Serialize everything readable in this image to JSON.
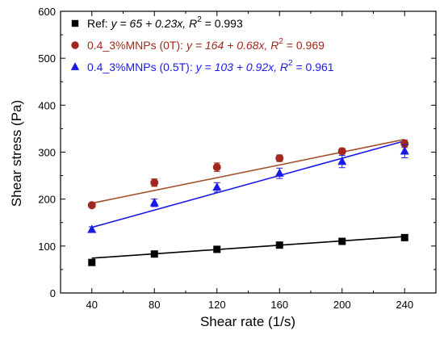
{
  "chart_data": {
    "type": "scatter",
    "xlabel": "Shear rate (1/s)",
    "ylabel": "Shear stress (Pa)",
    "xlim": [
      20,
      260
    ],
    "ylim": [
      0,
      600
    ],
    "xticks": [
      40,
      80,
      120,
      160,
      200,
      240
    ],
    "yticks": [
      0,
      100,
      200,
      300,
      400,
      500,
      600
    ],
    "x": [
      40,
      80,
      120,
      160,
      200,
      240
    ],
    "grid": false,
    "legend_position": "top-left",
    "series": [
      {
        "name": "Ref",
        "marker": "square",
        "color": "#000000",
        "line_color": "#000000",
        "values": [
          65,
          83,
          93,
          102,
          110,
          118
        ],
        "errors": [
          4,
          3,
          4,
          3,
          4,
          5
        ],
        "fit": {
          "intercept": 65,
          "slope": 0.23
        },
        "legend_label": "Ref: ",
        "legend_eq": "y = 65 + 0.23x, R",
        "legend_sup": "2",
        "legend_tail": " = 0.993"
      },
      {
        "name": "0.4_3%MNPs (0T)",
        "marker": "circle",
        "color": "#a0281e",
        "line_color": "#a0522d",
        "values": [
          187,
          235,
          268,
          287,
          302,
          318
        ],
        "errors": [
          5,
          8,
          9,
          7,
          6,
          8
        ],
        "fit": {
          "intercept": 164,
          "slope": 0.68
        },
        "legend_label": "0.4_3%MNPs (0T): ",
        "legend_eq": "y = 164 + 0.68x, R",
        "legend_sup": "2",
        "legend_tail": " = 0.969"
      },
      {
        "name": "0.4_3%MNPs (0.5T)",
        "marker": "triangle",
        "color": "#1a1ae6",
        "line_color": "#1a1ae6",
        "values": [
          135,
          192,
          225,
          255,
          280,
          302
        ],
        "errors": [
          6,
          8,
          10,
          11,
          13,
          14
        ],
        "fit": {
          "intercept": 103,
          "slope": 0.92
        },
        "legend_label": "0.4_3%MNPs (0.5T): ",
        "legend_eq": "y = 103 + 0.92x, R",
        "legend_sup": "2",
        "legend_tail": " = 0.961"
      }
    ]
  }
}
